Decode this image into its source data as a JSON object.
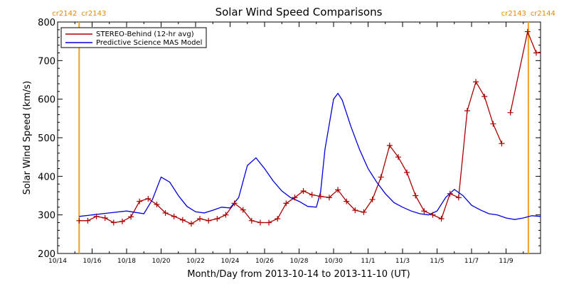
{
  "chart_data": {
    "type": "line",
    "title": "Solar Wind Speed Comparisons",
    "xlabel": "Month/Day from 2013-10-14 to 2013-11-10 (UT)",
    "ylabel": "Solar Wind Speed (km/s)",
    "ylim": [
      200,
      800
    ],
    "xlim": [
      "2013-10-14T00:00",
      "2013-11-11T00:00"
    ],
    "yticks": [
      200,
      300,
      400,
      500,
      600,
      700,
      800
    ],
    "xticks": [
      {
        "date": "2013-10-14T00:00",
        "label": "10/14"
      },
      {
        "date": "2013-10-16T00:00",
        "label": "10/16"
      },
      {
        "date": "2013-10-18T00:00",
        "label": "10/18"
      },
      {
        "date": "2013-10-20T00:00",
        "label": "10/20"
      },
      {
        "date": "2013-10-22T00:00",
        "label": "10/22"
      },
      {
        "date": "2013-10-24T00:00",
        "label": "10/24"
      },
      {
        "date": "2013-10-26T00:00",
        "label": "10/26"
      },
      {
        "date": "2013-10-28T00:00",
        "label": "10/28"
      },
      {
        "date": "2013-10-30T00:00",
        "label": "10/30"
      },
      {
        "date": "2013-11-01T00:00",
        "label": "11/1"
      },
      {
        "date": "2013-11-03T00:00",
        "label": "11/3"
      },
      {
        "date": "2013-11-05T00:00",
        "label": "11/5"
      },
      {
        "date": "2013-11-07T00:00",
        "label": "11/7"
      },
      {
        "date": "2013-11-09T00:00",
        "label": "11/9"
      }
    ],
    "rotation_markers": [
      {
        "date": "2013-10-15T06:00",
        "label_left": "cr2142",
        "label_right": "cr2143"
      },
      {
        "date": "2013-11-10T07:00",
        "label_left": "cr2143",
        "label_right": "cr2144"
      }
    ],
    "legend_position": "top-left",
    "series": [
      {
        "name": "STEREO-Behind (12-hr avg)",
        "color": "#aa0000",
        "marker": "plus",
        "x": [
          "2013-10-15T06:00",
          "2013-10-15T18:00",
          "2013-10-16T06:00",
          "2013-10-16T18:00",
          "2013-10-17T06:00",
          "2013-10-17T18:00",
          "2013-10-18T06:00",
          "2013-10-18T18:00",
          "2013-10-19T06:00",
          "2013-10-19T18:00",
          "2013-10-20T06:00",
          "2013-10-20T18:00",
          "2013-10-21T06:00",
          "2013-10-21T18:00",
          "2013-10-22T06:00",
          "2013-10-22T18:00",
          "2013-10-23T06:00",
          "2013-10-23T18:00",
          "2013-10-24T06:00",
          "2013-10-24T18:00",
          "2013-10-25T06:00",
          "2013-10-25T18:00",
          "2013-10-26T06:00",
          "2013-10-26T18:00",
          "2013-10-27T06:00",
          "2013-10-27T18:00",
          "2013-10-28T06:00",
          "2013-10-28T18:00",
          "2013-10-29T06:00",
          "2013-10-29T18:00",
          "2013-10-30T06:00",
          "2013-10-30T18:00",
          "2013-10-31T06:00",
          "2013-10-31T18:00",
          "2013-11-01T06:00",
          "2013-11-01T18:00",
          "2013-11-02T06:00",
          "2013-11-02T18:00",
          "2013-11-03T06:00",
          "2013-11-03T18:00",
          "2013-11-04T06:00",
          "2013-11-04T18:00",
          "2013-11-05T06:00",
          "2013-11-05T18:00",
          "2013-11-06T06:00",
          "2013-11-06T18:00",
          "2013-11-07T06:00",
          "2013-11-07T18:00",
          "2013-11-08T06:00",
          "2013-11-08T18:00"
        ],
        "y": [
          285,
          285,
          296,
          292,
          280,
          283,
          295,
          335,
          342,
          327,
          305,
          296,
          287,
          277,
          290,
          285,
          290,
          300,
          330,
          313,
          285,
          280,
          280,
          290,
          330,
          345,
          362,
          352,
          348,
          345,
          365,
          335,
          312,
          307,
          340,
          398,
          480,
          450,
          410,
          350,
          310,
          300,
          290,
          355,
          345,
          570,
          645,
          607,
          536,
          485
        ],
        "x2": [
          "2013-11-09T06:00",
          "2013-11-10T06:00",
          "2013-11-10T18:00",
          "2013-11-11T00:00"
        ],
        "y2": [
          565,
          775,
          720,
          722
        ]
      },
      {
        "name": "Predictive Science MAS Model",
        "color": "#0000dd",
        "marker": "none",
        "x": [
          "2013-10-15T06:00",
          "2013-10-16T00:00",
          "2013-10-17T00:00",
          "2013-10-18T00:00",
          "2013-10-19T00:00",
          "2013-10-19T12:00",
          "2013-10-20T00:00",
          "2013-10-20T12:00",
          "2013-10-21T00:00",
          "2013-10-21T12:00",
          "2013-10-22T00:00",
          "2013-10-22T12:00",
          "2013-10-23T00:00",
          "2013-10-23T12:00",
          "2013-10-24T00:00",
          "2013-10-24T12:00",
          "2013-10-25T00:00",
          "2013-10-25T12:00",
          "2013-10-26T00:00",
          "2013-10-26T12:00",
          "2013-10-27T00:00",
          "2013-10-27T12:00",
          "2013-10-28T00:00",
          "2013-10-28T12:00",
          "2013-10-29T00:00",
          "2013-10-29T06:00",
          "2013-10-29T12:00",
          "2013-10-30T00:00",
          "2013-10-30T06:00",
          "2013-10-30T12:00",
          "2013-10-31T00:00",
          "2013-10-31T12:00",
          "2013-11-01T00:00",
          "2013-11-01T12:00",
          "2013-11-02T00:00",
          "2013-11-02T12:00",
          "2013-11-03T00:00",
          "2013-11-03T12:00",
          "2013-11-04T00:00",
          "2013-11-04T12:00",
          "2013-11-05T00:00",
          "2013-11-05T12:00",
          "2013-11-06T00:00",
          "2013-11-06T12:00",
          "2013-11-07T00:00",
          "2013-11-07T12:00",
          "2013-11-08T00:00",
          "2013-11-08T12:00",
          "2013-11-09T00:00",
          "2013-11-09T12:00",
          "2013-11-10T00:00",
          "2013-11-10T12:00",
          "2013-11-11T00:00"
        ],
        "y": [
          296,
          300,
          305,
          310,
          303,
          340,
          398,
          385,
          350,
          322,
          308,
          305,
          312,
          320,
          318,
          345,
          428,
          448,
          420,
          388,
          362,
          345,
          335,
          322,
          320,
          360,
          470,
          600,
          615,
          598,
          530,
          470,
          420,
          385,
          355,
          332,
          320,
          310,
          303,
          300,
          310,
          345,
          366,
          350,
          325,
          313,
          303,
          300,
          292,
          288,
          292,
          298,
          296
        ]
      }
    ]
  }
}
